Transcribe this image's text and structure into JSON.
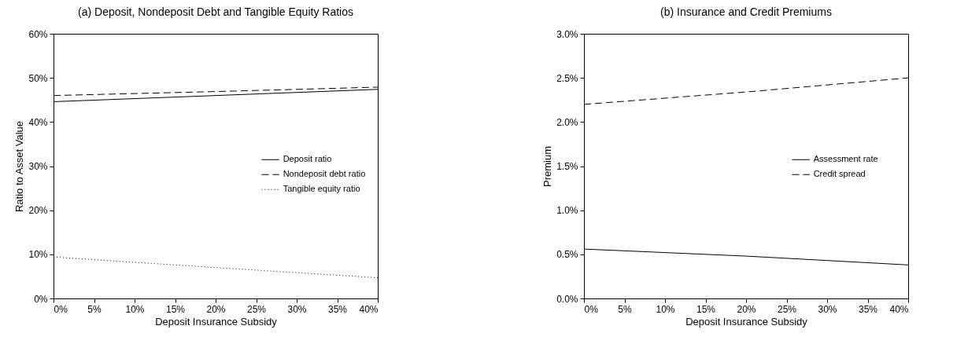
{
  "chart_data": [
    {
      "type": "line",
      "title": "(a) Deposit, Nondeposit Debt and Tangible Equity Ratios",
      "xlabel": "Deposit Insurance Subsidy",
      "ylabel": "Ratio to Asset Value",
      "x": [
        0,
        20,
        40
      ],
      "xlim": [
        0,
        40
      ],
      "xticks": [
        {
          "value": 0,
          "label": "0%"
        },
        {
          "value": 5,
          "label": "5%"
        },
        {
          "value": 10,
          "label": "10%"
        },
        {
          "value": 15,
          "label": "15%"
        },
        {
          "value": 20,
          "label": "20%"
        },
        {
          "value": 25,
          "label": "25%"
        },
        {
          "value": 30,
          "label": "30%"
        },
        {
          "value": 35,
          "label": "35%"
        },
        {
          "value": 40,
          "label": "40%"
        }
      ],
      "ylim": [
        0,
        60
      ],
      "yticks": [
        {
          "value": 0,
          "label": "0%"
        },
        {
          "value": 10,
          "label": "10%"
        },
        {
          "value": 20,
          "label": "20%"
        },
        {
          "value": 30,
          "label": "30%"
        },
        {
          "value": 40,
          "label": "40%"
        },
        {
          "value": 50,
          "label": "50%"
        },
        {
          "value": 60,
          "label": "60%"
        }
      ],
      "grid": false,
      "legend": "right",
      "series": [
        {
          "name": "Deposit ratio",
          "color": "#000000",
          "line_style": "solid",
          "values": [
            44.6,
            46.0,
            47.4
          ]
        },
        {
          "name": "Nondeposit debt ratio",
          "color": "#000000",
          "line_style": "dashed",
          "values": [
            46.0,
            46.9,
            47.9
          ]
        },
        {
          "name": "Tangible equity ratio",
          "color": "#000000",
          "line_style": "dotted",
          "values": [
            9.4,
            7.0,
            4.7
          ]
        }
      ]
    },
    {
      "type": "line",
      "title": "(b) Insurance and Credit Premiums",
      "xlabel": "Deposit Insurance Subsidy",
      "ylabel": "Premium",
      "x": [
        0,
        20,
        40
      ],
      "xlim": [
        0,
        40
      ],
      "xticks": [
        {
          "value": 0,
          "label": "0%"
        },
        {
          "value": 5,
          "label": "5%"
        },
        {
          "value": 10,
          "label": "10%"
        },
        {
          "value": 15,
          "label": "15%"
        },
        {
          "value": 20,
          "label": "20%"
        },
        {
          "value": 25,
          "label": "25%"
        },
        {
          "value": 30,
          "label": "30%"
        },
        {
          "value": 35,
          "label": "35%"
        },
        {
          "value": 40,
          "label": "40%"
        }
      ],
      "ylim": [
        0,
        3
      ],
      "yticks": [
        {
          "value": 0,
          "label": "0.0%"
        },
        {
          "value": 0.5,
          "label": "0.5%"
        },
        {
          "value": 1,
          "label": "1.0%"
        },
        {
          "value": 1.5,
          "label": "1.5%"
        },
        {
          "value": 2,
          "label": "2.0%"
        },
        {
          "value": 2.5,
          "label": "2.5%"
        },
        {
          "value": 3,
          "label": "3.0%"
        }
      ],
      "grid": false,
      "legend": "right",
      "series": [
        {
          "name": "Assessment rate",
          "color": "#000000",
          "line_style": "solid",
          "values": [
            0.56,
            0.48,
            0.38
          ]
        },
        {
          "name": "Credit spread",
          "color": "#000000",
          "line_style": "dashed",
          "values": [
            2.2,
            2.34,
            2.5
          ]
        }
      ]
    }
  ]
}
